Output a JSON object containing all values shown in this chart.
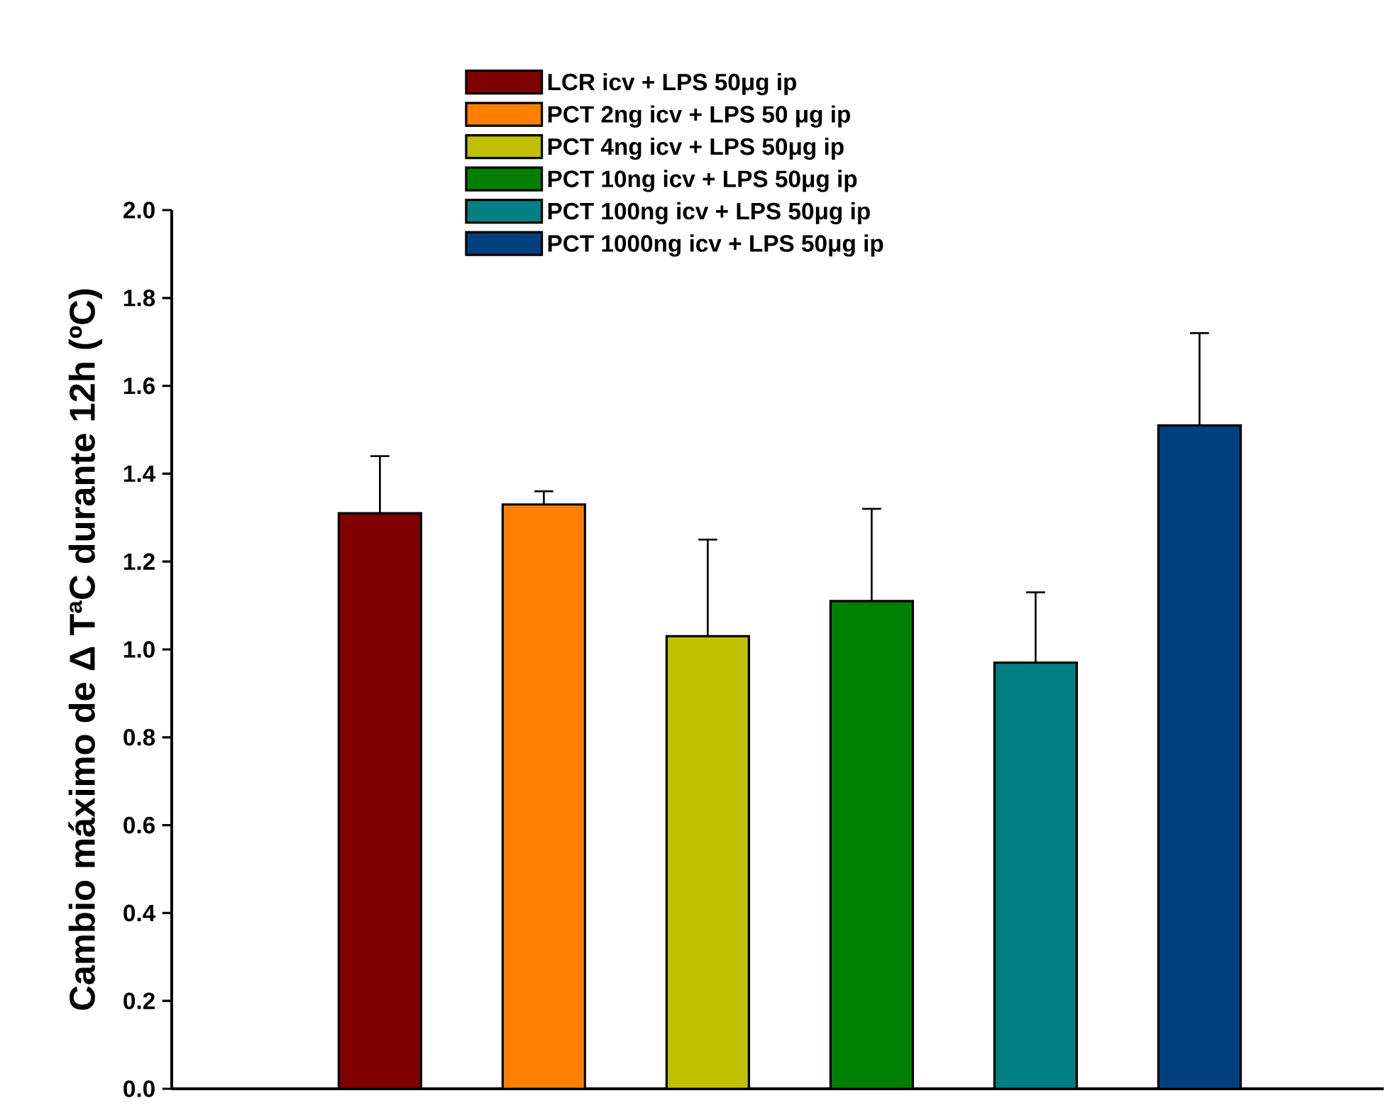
{
  "chart_data": {
    "type": "bar",
    "ylabel": "Cambio máximo de Δ TªC durante 12h (ºC)",
    "categories": [
      null,
      null,
      null,
      null,
      null,
      null
    ],
    "series": [
      {
        "name": "LCR icv + LPS 50μg ip",
        "color": "#800000",
        "values": [
          1.31,
          null,
          null,
          null,
          null,
          null
        ],
        "errors": [
          [
            1.31,
            1.44
          ],
          null,
          null,
          null,
          null,
          null
        ]
      },
      {
        "name": "PCT 2ng icv + LPS 50 μg ip",
        "color": "#ff8000",
        "values": [
          null,
          1.33,
          null,
          null,
          null,
          null
        ],
        "errors": [
          null,
          [
            1.33,
            1.36
          ],
          null,
          null,
          null,
          null
        ]
      },
      {
        "name": "PCT 4ng icv + LPS 50μg ip",
        "color": "#c0c000",
        "values": [
          null,
          null,
          1.03,
          null,
          null,
          null
        ],
        "errors": [
          null,
          null,
          [
            1.03,
            1.25
          ],
          null,
          null,
          null
        ]
      },
      {
        "name": "PCT 10ng icv + LPS 50μg ip",
        "color": "#008000",
        "values": [
          null,
          null,
          null,
          1.11,
          null,
          null
        ],
        "errors": [
          null,
          null,
          null,
          [
            1.11,
            1.32
          ],
          null,
          null
        ]
      },
      {
        "name": "PCT 100ng icv + LPS 50μg ip",
        "color": "#008080",
        "values": [
          null,
          null,
          null,
          null,
          0.97,
          null
        ],
        "errors": [
          null,
          null,
          null,
          null,
          [
            0.97,
            1.13
          ],
          null
        ]
      },
      {
        "name": "PCT 1000ng icv + LPS 50μg ip",
        "color": "#004080",
        "values": [
          null,
          null,
          null,
          null,
          null,
          1.51
        ],
        "errors": [
          null,
          null,
          null,
          null,
          null,
          [
            1.51,
            1.72
          ]
        ]
      }
    ],
    "ylim": [
      0,
      2
    ],
    "yticks": [
      {
        "value": 0,
        "label": "0.0"
      },
      {
        "value": 0.2,
        "label": "0.2"
      },
      {
        "value": 0.4,
        "label": "0.4"
      },
      {
        "value": 0.6,
        "label": "0.6"
      },
      {
        "value": 0.8,
        "label": "0.8"
      },
      {
        "value": 1,
        "label": "1.0"
      },
      {
        "value": 1.2,
        "label": "1.2"
      },
      {
        "value": 1.4,
        "label": "1.4"
      },
      {
        "value": 1.6,
        "label": "1.6"
      },
      {
        "value": 1.8,
        "label": "1.8"
      },
      {
        "value": 2,
        "label": "2.0"
      }
    ],
    "stacked": true,
    "tick_labels": "y",
    "legend": "top"
  }
}
